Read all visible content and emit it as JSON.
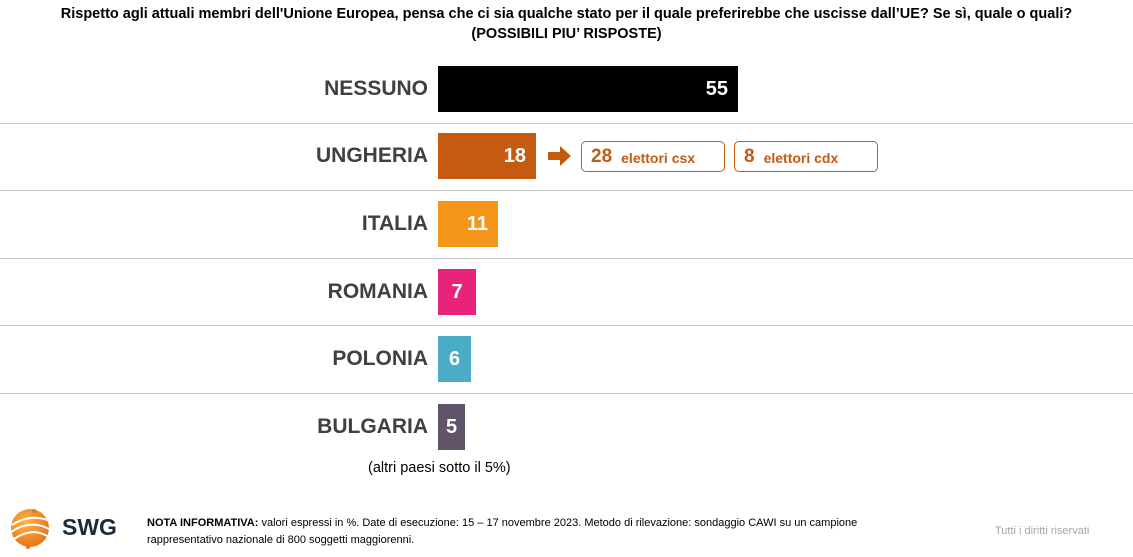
{
  "title_line1": "Rispetto agli attuali membri dell'Unione Europea, pensa che ci sia qualche stato per il quale preferirebbe che uscisse dall’UE? Se sì, quale o quali?",
  "title_line2": "(POSSIBILI PIU’ RISPOSTE)",
  "chart_data": {
    "type": "bar",
    "orientation": "horizontal",
    "categories": [
      "NESSUNO",
      "UNGHERIA",
      "ITALIA",
      "ROMANIA",
      "POLONIA",
      "BULGARIA"
    ],
    "values": [
      55,
      18,
      11,
      7,
      6,
      5
    ],
    "colors": [
      "#000000",
      "#c55a11",
      "#f39619",
      "#e8237b",
      "#4bacc6",
      "#5f5468"
    ],
    "annotations": [
      {
        "category": "UNGHERIA",
        "value": 28,
        "label": "elettori csx"
      },
      {
        "category": "UNGHERIA",
        "value": 8,
        "label": "elettori cdx"
      }
    ],
    "note": "(altri paesi sotto il 5%)"
  },
  "footer": {
    "note_title": "NOTA INFORMATIVA:",
    "note_line1": " valori espressi in %. Date di esecuzione: 15 – 17 novembre 2023. Metodo di rilevazione: sondaggio CAWI su un campione",
    "note_line2": "rappresentativo nazionale di 800 soggetti maggiorenni.",
    "rights": "Tutti i diritti riservati",
    "logo_text": "SWG"
  },
  "accent_color": "#c55a11"
}
